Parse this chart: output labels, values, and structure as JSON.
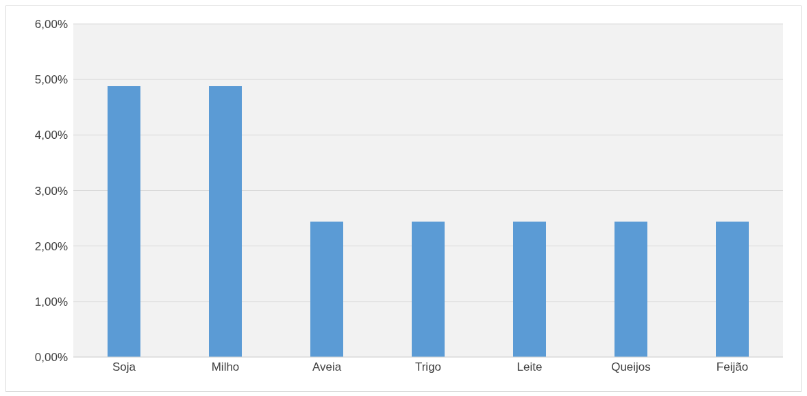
{
  "chart_data": {
    "type": "bar",
    "categories": [
      "Soja",
      "Milho",
      "Aveia",
      "Trigo",
      "Leite",
      "Queijos",
      "Feijão"
    ],
    "values": [
      4.88,
      4.88,
      2.44,
      2.44,
      2.44,
      2.44,
      2.44
    ],
    "color": "#5b9bd5",
    "ylim": [
      0,
      6
    ],
    "yticks": [
      {
        "value": 0,
        "label": "0,00%"
      },
      {
        "value": 1,
        "label": "1,00%"
      },
      {
        "value": 2,
        "label": "2,00%"
      },
      {
        "value": 3,
        "label": "3,00%"
      },
      {
        "value": 4,
        "label": "4,00%"
      },
      {
        "value": 5,
        "label": "5,00%"
      },
      {
        "value": 6,
        "label": "6,00%"
      }
    ],
    "grid": "y",
    "legend": false
  }
}
